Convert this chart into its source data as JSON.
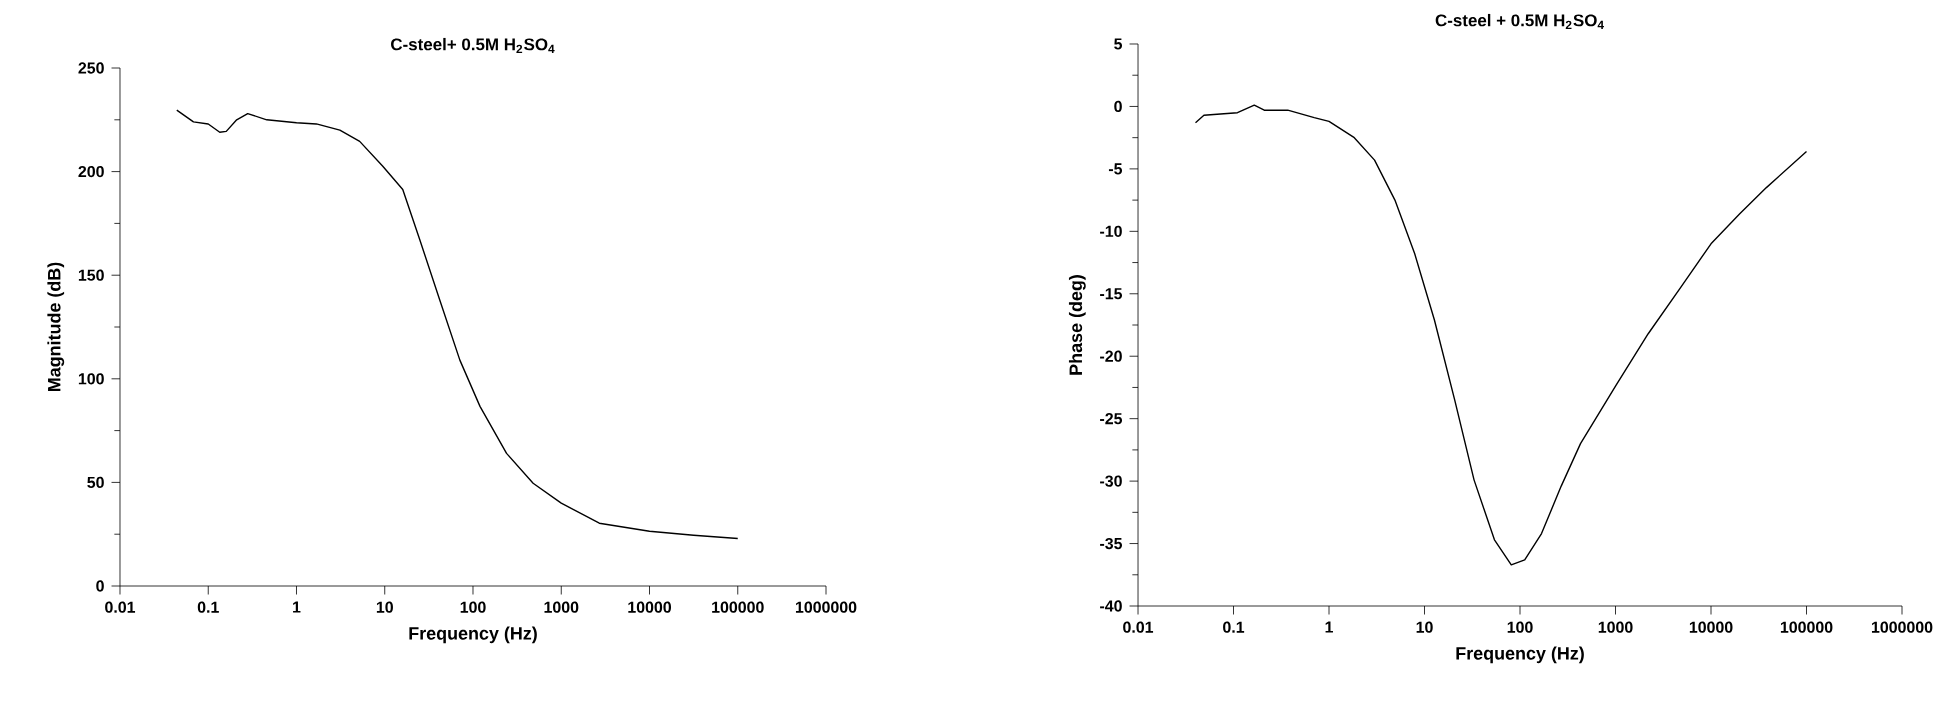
{
  "chart_data": [
    {
      "type": "line",
      "title": "C-steel+ 0.5M H$_{2}$SO$_{4}$",
      "xlabel": "Frequency (Hz)",
      "ylabel": "Magnitude (dB)",
      "log": "x",
      "xlim": [
        0.01,
        1000000
      ],
      "ylim": [
        0,
        250
      ],
      "xticks": [
        0.01,
        0.1,
        1,
        10,
        100,
        1000,
        10000,
        100000,
        1000000
      ],
      "yticks": [
        0,
        50,
        100,
        150,
        200,
        250
      ],
      "series": [
        {
          "color": "#000000",
          "x": [
            0.044,
            0.068,
            0.1,
            0.135,
            0.16,
            0.21,
            0.28,
            0.46,
            1,
            1.68,
            3.1,
            5.2,
            9.5,
            16,
            25,
            42,
            71,
            120,
            240,
            480,
            1000,
            2700,
            10000,
            31600,
            100000
          ],
          "values": [
            229.7,
            224,
            223,
            219,
            219.4,
            225,
            228,
            225,
            223.6,
            223,
            220,
            214.6,
            202.6,
            191.4,
            167,
            138,
            109,
            86.7,
            64,
            49.6,
            40,
            30.3,
            26.4,
            24.5,
            22.9
          ]
        }
      ]
    },
    {
      "type": "line",
      "title": "C-steel + 0.5M H$_{2}$SO$_{4}$",
      "xlabel": "Frequency (Hz)",
      "ylabel": "Phase (deg)",
      "log": "x",
      "xlim": [
        0.01,
        1000000
      ],
      "ylim": [
        -40,
        5
      ],
      "xticks": [
        0.01,
        0.1,
        1,
        10,
        100,
        1000,
        10000,
        100000,
        1000000
      ],
      "yticks": [
        5,
        0,
        -5,
        -10,
        -15,
        -20,
        -25,
        -30,
        -35,
        -40
      ],
      "series": [
        {
          "color": "#000000",
          "x": [
            0.04,
            0.049,
            0.073,
            0.11,
            0.165,
            0.21,
            0.37,
            0.7,
            1,
            1.84,
            3.0,
            4.9,
            7.9,
            12.7,
            20.7,
            33,
            54,
            81,
            112,
            168,
            270,
            430,
            1000,
            2200,
            4900,
            10000,
            20000,
            38000,
            100000
          ],
          "values": [
            -1.3,
            -0.7,
            -0.6,
            -0.5,
            0.1,
            -0.3,
            -0.3,
            -0.9,
            -1.2,
            -2.5,
            -4.3,
            -7.5,
            -11.8,
            -17.1,
            -23.5,
            -29.9,
            -34.7,
            -36.7,
            -36.3,
            -34.2,
            -30.4,
            -27,
            -22.4,
            -18.2,
            -14.4,
            -11,
            -8.6,
            -6.5,
            -3.6
          ]
        }
      ]
    }
  ]
}
